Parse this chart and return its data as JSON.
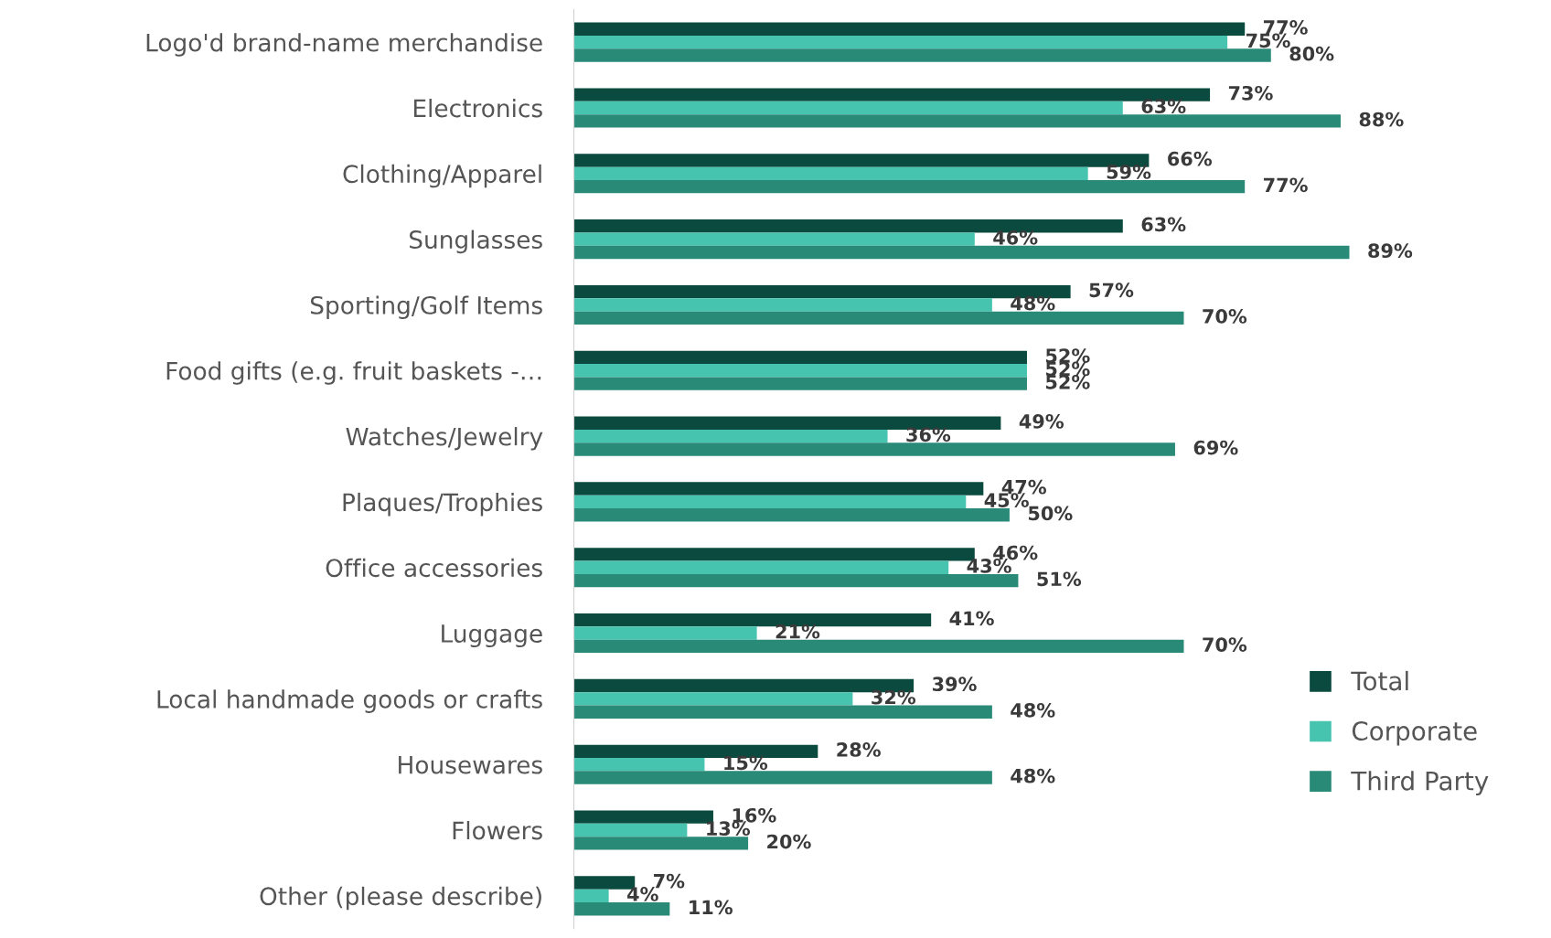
{
  "chart_data": {
    "type": "bar",
    "orientation": "horizontal",
    "legend": "bottom right",
    "grid": false,
    "categories": [
      "Logo'd brand-name merchandise",
      "Electronics",
      "Clothing/Apparel",
      "Sunglasses",
      "Sporting/Golf Items",
      "Food gifts (e.g. fruit baskets -…",
      "Watches/Jewelry",
      "Plaques/Trophies",
      "Office accessories",
      "Luggage",
      "Local handmade goods or crafts",
      "Housewares",
      "Flowers",
      "Other (please describe)"
    ],
    "series": [
      {
        "name": "Total",
        "color": "#0b4a3e",
        "values": [
          77,
          73,
          66,
          63,
          57,
          52,
          49,
          47,
          46,
          41,
          39,
          28,
          16,
          7
        ],
        "value_labels": [
          "77%",
          "73%",
          "66%",
          "63%",
          "57%",
          "52%",
          "49%",
          "47%",
          "46%",
          "41%",
          "39%",
          "28%",
          "16%",
          "7%"
        ]
      },
      {
        "name": "Corporate",
        "color": "#47c4b0",
        "values": [
          75,
          63,
          59,
          46,
          48,
          52,
          36,
          45,
          43,
          21,
          32,
          15,
          13,
          4
        ],
        "value_labels": [
          "75%",
          "63%",
          "59%",
          "46%",
          "48%",
          "52%",
          "36%",
          "45%",
          "43%",
          "21%",
          "32%",
          "15%",
          "13%",
          "4%"
        ]
      },
      {
        "name": "Third Party",
        "color": "#2a8a78",
        "values": [
          80,
          88,
          77,
          89,
          70,
          52,
          69,
          50,
          51,
          70,
          48,
          48,
          20,
          11
        ],
        "value_labels": [
          "80%",
          "88%",
          "77%",
          "89%",
          "70%",
          "52%",
          "69%",
          "50%",
          "51%",
          "70%",
          "48%",
          "48%",
          "20%",
          "11%"
        ]
      }
    ]
  }
}
